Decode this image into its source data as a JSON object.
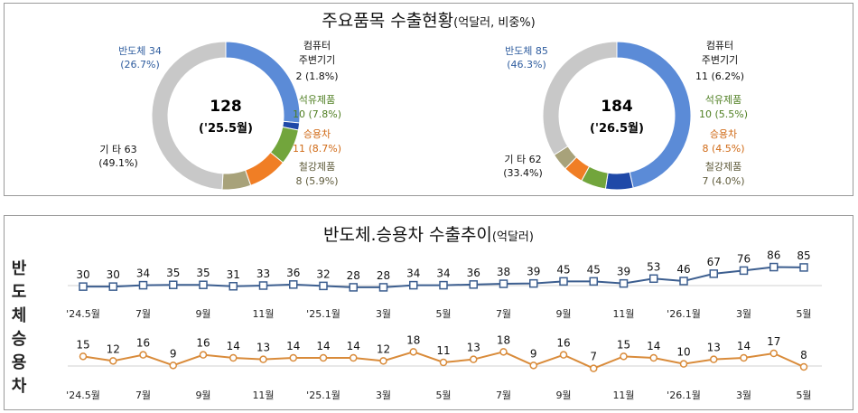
{
  "colors": {
    "semiconductor": "#5B8BD7",
    "computer": "#1F49A8",
    "petroleum": "#72A53C",
    "car": "#F07E25",
    "steel": "#A8A27A",
    "others": "#C8C8C8",
    "blue_line": "#3C5E8F",
    "orange_line": "#D98B3A"
  },
  "top": {
    "title": "주요품목  수출현황",
    "title_suffix": "(억달러, 비중%)"
  },
  "bottom": {
    "title": "반도체.승용차  수출추이",
    "title_suffix": "(억달러)",
    "row_label_semi": "반도체",
    "row_label_car": "승용차"
  },
  "chart_data": [
    {
      "type": "pie",
      "center_total": "128",
      "center_label": "('25.5월)",
      "slices": [
        {
          "key": "semiconductor",
          "name": "반도체",
          "value": 34,
          "pct": "(26.7%)",
          "value_text": "34"
        },
        {
          "key": "computer",
          "name": "컴퓨터 주변기기",
          "value": 2,
          "pct": "(1.8%)",
          "value_text": "2",
          "name_line1": "컴퓨터",
          "name_line2": "주변기기"
        },
        {
          "key": "petroleum",
          "name": "석유제품",
          "value": 10,
          "pct": "(7.8%)",
          "value_text": "10"
        },
        {
          "key": "car",
          "name": "승용차",
          "value": 11,
          "pct": "(8.7%)",
          "value_text": "11"
        },
        {
          "key": "steel",
          "name": "철강제품",
          "value": 8,
          "pct": "(5.9%)",
          "value_text": "8"
        },
        {
          "key": "others",
          "name": "기 타",
          "value": 63,
          "pct": "(49.1%)",
          "value_text": "63"
        }
      ]
    },
    {
      "type": "pie",
      "center_total": "184",
      "center_label": "('26.5월)",
      "slices": [
        {
          "key": "semiconductor",
          "name": "반도체",
          "value": 85,
          "pct": "(46.3%)",
          "value_text": "85"
        },
        {
          "key": "computer",
          "name": "컴퓨터 주변기기",
          "value": 11,
          "pct": "(6.2%)",
          "value_text": "11",
          "name_line1": "컴퓨터",
          "name_line2": "주변기기"
        },
        {
          "key": "petroleum",
          "name": "석유제품",
          "value": 10,
          "pct": "(5.5%)",
          "value_text": "10"
        },
        {
          "key": "car",
          "name": "승용차",
          "value": 8,
          "pct": "(4.5%)",
          "value_text": "8"
        },
        {
          "key": "steel",
          "name": "철강제품",
          "value": 7,
          "pct": "(4.0%)",
          "value_text": "7"
        },
        {
          "key": "others",
          "name": "기 타",
          "value": 62,
          "pct": "(33.4%)",
          "value_text": "62"
        }
      ]
    },
    {
      "type": "line",
      "x": [
        "'24.5월",
        "6월",
        "7월",
        "8월",
        "9월",
        "10월",
        "11월",
        "12월",
        "'25.1월",
        "2월",
        "3월",
        "4월",
        "5월",
        "6월",
        "7월",
        "8월",
        "9월",
        "10월",
        "11월",
        "12월",
        "'26.1월",
        "2월",
        "3월",
        "4월",
        "5월"
      ],
      "tick_labels": [
        "'24.5월",
        "7월",
        "9월",
        "11월",
        "'25.1월",
        "3월",
        "5월",
        "7월",
        "9월",
        "11월",
        "'26.1월",
        "3월",
        "5월"
      ],
      "series": [
        {
          "key": "semi",
          "name": "반도체",
          "values": [
            30,
            30,
            34,
            35,
            35,
            31,
            33,
            36,
            32,
            28,
            28,
            34,
            34,
            36,
            38,
            39,
            45,
            45,
            39,
            53,
            46,
            67,
            76,
            86,
            85
          ]
        },
        {
          "key": "car",
          "name": "승용차",
          "values": [
            15,
            12,
            16,
            9,
            16,
            14,
            13,
            14,
            14,
            14,
            12,
            18,
            11,
            13,
            18,
            9,
            16,
            7,
            15,
            14,
            10,
            13,
            14,
            17,
            8
          ]
        }
      ]
    }
  ]
}
